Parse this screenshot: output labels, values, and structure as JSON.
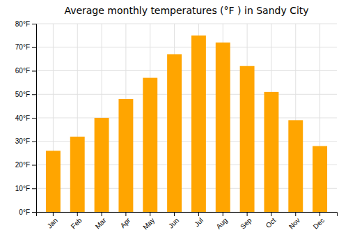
{
  "chart_data": {
    "type": "bar",
    "title": "Average monthly temperatures (°F ) in Sandy City",
    "categories": [
      "Jan",
      "Feb",
      "Mar",
      "Apr",
      "May",
      "Jun",
      "Jul",
      "Aug",
      "Sep",
      "Oct",
      "Nov",
      "Dec"
    ],
    "values": [
      26,
      32,
      40,
      48,
      57,
      67,
      75,
      72,
      62,
      51,
      39,
      28
    ],
    "color": "#FFA500",
    "ylim": [
      0,
      80
    ],
    "yticks": [
      {
        "value": 0,
        "label": "0°F"
      },
      {
        "value": 10,
        "label": "10°F"
      },
      {
        "value": 20,
        "label": "20°F"
      },
      {
        "value": 30,
        "label": "30°F"
      },
      {
        "value": 40,
        "label": "40°F"
      },
      {
        "value": 50,
        "label": "50°F"
      },
      {
        "value": 60,
        "label": "60°F"
      },
      {
        "value": 70,
        "label": "70°F"
      },
      {
        "value": 80,
        "label": "80°F"
      }
    ],
    "grid": true
  }
}
